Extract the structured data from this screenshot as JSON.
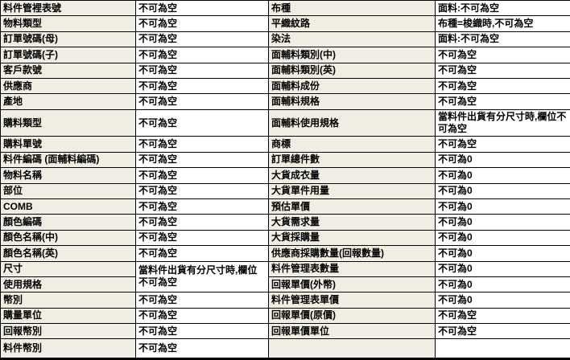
{
  "table": {
    "description_colors": {
      "label_cell_bg": "#f0eee2",
      "value_cell_bg": "#ffffff",
      "border": "#000000",
      "text": "#000000"
    },
    "columns": [
      "field-name-left",
      "rule-left",
      "field-name-right",
      "rule-right"
    ],
    "rows": [
      {
        "cells": [
          {
            "t": "料件管裡表號",
            "type": "label"
          },
          {
            "t": "不可為空",
            "type": "value"
          },
          {
            "t": "布種",
            "type": "label"
          },
          {
            "t": "面料:不可為空",
            "type": "value"
          }
        ]
      },
      {
        "cells": [
          {
            "t": "物料類型",
            "type": "label"
          },
          {
            "t": "不可為空",
            "type": "value"
          },
          {
            "t": "平織紋路",
            "type": "label"
          },
          {
            "t": "布種=梭織時,不可為空",
            "type": "value"
          }
        ]
      },
      {
        "cells": [
          {
            "t": "訂單號碼(母)",
            "type": "label"
          },
          {
            "t": "不可為空",
            "type": "value"
          },
          {
            "t": "染法",
            "type": "label"
          },
          {
            "t": "面料:不可為空",
            "type": "value"
          }
        ]
      },
      {
        "cells": [
          {
            "t": "訂單號碼(子)",
            "type": "label"
          },
          {
            "t": "不可為空",
            "type": "value"
          },
          {
            "t": "面輔料類別(中)",
            "type": "label"
          },
          {
            "t": "不可為空",
            "type": "value"
          }
        ]
      },
      {
        "cells": [
          {
            "t": "客戶款號",
            "type": "label"
          },
          {
            "t": "不可為空",
            "type": "value"
          },
          {
            "t": "面輔料類別(英)",
            "type": "label"
          },
          {
            "t": "不可為空",
            "type": "value"
          }
        ]
      },
      {
        "cells": [
          {
            "t": "供應商",
            "type": "label"
          },
          {
            "t": "不可為空",
            "type": "value"
          },
          {
            "t": "面輔料成份",
            "type": "label"
          },
          {
            "t": "不可為空",
            "type": "value"
          }
        ]
      },
      {
        "cells": [
          {
            "t": "產地",
            "type": "label"
          },
          {
            "t": "不可為空",
            "type": "value"
          },
          {
            "t": "面輔料規格",
            "type": "label"
          },
          {
            "t": "不可為空",
            "type": "value"
          }
        ]
      },
      {
        "tall": true,
        "cells": [
          {
            "t": "購料類型",
            "type": "label"
          },
          {
            "t": "不可為空",
            "type": "value"
          },
          {
            "t": "面輔料使用規格",
            "type": "label"
          },
          {
            "t": "當料件出貨有分尺寸時,欄位不可為空",
            "type": "value"
          }
        ]
      },
      {
        "cells": [
          {
            "t": "購料單號",
            "type": "label"
          },
          {
            "t": "不可為空",
            "type": "value"
          },
          {
            "t": "商標",
            "type": "label"
          },
          {
            "t": "不可為空",
            "type": "value"
          }
        ]
      },
      {
        "cells": [
          {
            "t": "料件編碼 (面輔料編碼)",
            "type": "label"
          },
          {
            "t": "不可為空",
            "type": "value"
          },
          {
            "t": "訂單總件數",
            "type": "label"
          },
          {
            "t": "不可為0",
            "type": "value"
          }
        ]
      },
      {
        "cells": [
          {
            "t": "物料名稱",
            "type": "label"
          },
          {
            "t": "不可為空",
            "type": "value"
          },
          {
            "t": "大貨成衣量",
            "type": "label"
          },
          {
            "t": "不可為0",
            "type": "value"
          }
        ]
      },
      {
        "cells": [
          {
            "t": "部位",
            "type": "label"
          },
          {
            "t": "不可為空",
            "type": "value"
          },
          {
            "t": "大貨單件用量",
            "type": "label"
          },
          {
            "t": "不可為0",
            "type": "value"
          }
        ]
      },
      {
        "cells": [
          {
            "t": "COMB",
            "type": "label"
          },
          {
            "t": "不可為空",
            "type": "value"
          },
          {
            "t": "預估單價",
            "type": "label"
          },
          {
            "t": "不可為0",
            "type": "value"
          }
        ]
      },
      {
        "cells": [
          {
            "t": "顏色編碼",
            "type": "label"
          },
          {
            "t": "不可為空",
            "type": "value"
          },
          {
            "t": "大貨需求量",
            "type": "label"
          },
          {
            "t": "不可為0",
            "type": "value"
          }
        ]
      },
      {
        "cells": [
          {
            "t": "顏色名稱(中)",
            "type": "label"
          },
          {
            "t": "不可為空",
            "type": "value"
          },
          {
            "t": "大貨採購量",
            "type": "label"
          },
          {
            "t": "不可為0",
            "type": "value"
          }
        ]
      },
      {
        "cells": [
          {
            "t": "顏色名稱(英)",
            "type": "label"
          },
          {
            "t": "不可為空",
            "type": "value"
          },
          {
            "t": "供應商採購數量(回報數量)",
            "type": "label"
          },
          {
            "t": "不可為0",
            "type": "value"
          }
        ]
      },
      {
        "cells": [
          {
            "t": "尺寸",
            "type": "label"
          },
          {
            "t": "當料件出貨有分尺寸時,欄位不可為空",
            "type": "value",
            "rowspan": 2
          },
          {
            "t": "料件管理表數量",
            "type": "label"
          },
          {
            "t": "不可為0",
            "type": "value"
          }
        ]
      },
      {
        "cells": [
          {
            "t": "使用規格",
            "type": "label"
          },
          {
            "skip": true
          },
          {
            "t": "回報單價(外幣)",
            "type": "label"
          },
          {
            "t": "不可為0",
            "type": "value"
          }
        ]
      },
      {
        "cells": [
          {
            "t": "幣別",
            "type": "label"
          },
          {
            "t": "不可為空",
            "type": "value"
          },
          {
            "t": "料件管理表單價",
            "type": "label"
          },
          {
            "t": "不可為0",
            "type": "value"
          }
        ]
      },
      {
        "cells": [
          {
            "t": "購量單位",
            "type": "label"
          },
          {
            "t": "不可為空",
            "type": "value"
          },
          {
            "t": "回報單價(原價)",
            "type": "label"
          },
          {
            "t": "不可為空",
            "type": "value"
          }
        ]
      },
      {
        "cells": [
          {
            "t": "回報幣別",
            "type": "label"
          },
          {
            "t": "不可為空",
            "type": "value"
          },
          {
            "t": "回報單價單位",
            "type": "label"
          },
          {
            "t": "不可為空",
            "type": "value"
          }
        ]
      },
      {
        "last": true,
        "cells": [
          {
            "t": "料件幣別",
            "type": "label"
          },
          {
            "t": "不可為空",
            "type": "value"
          },
          {
            "t": "",
            "type": "label"
          },
          {
            "t": "",
            "type": "value"
          }
        ]
      }
    ]
  }
}
